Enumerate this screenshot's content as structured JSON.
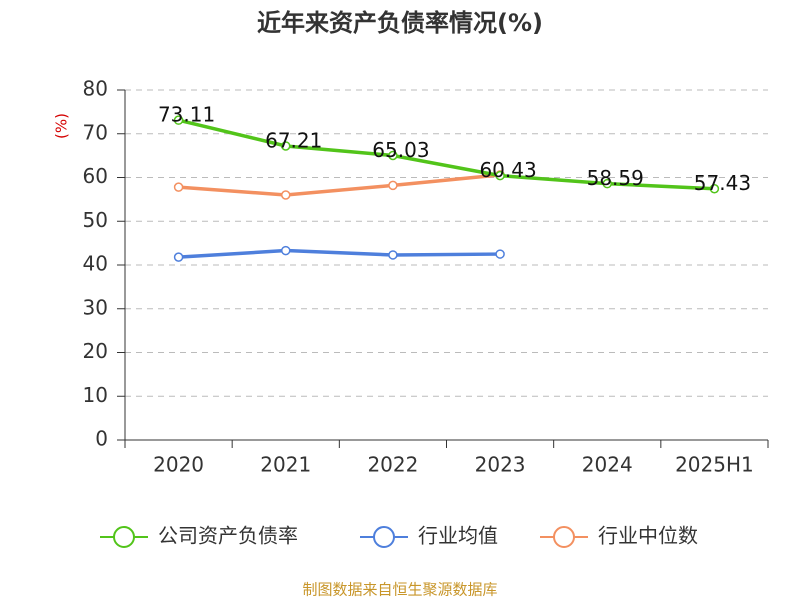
{
  "chart_data": {
    "type": "line",
    "title": "近年来资产负债率情况(%)",
    "y_label": "(%)",
    "categories": [
      "2020",
      "2021",
      "2022",
      "2023",
      "2024",
      "2025H1"
    ],
    "series": [
      {
        "name": "公司资产负债率",
        "color": "#52c41a",
        "values": [
          73.11,
          67.21,
          65.03,
          60.43,
          58.59,
          57.43
        ],
        "show_labels": true
      },
      {
        "name": "行业均值",
        "color": "#4e7fdc",
        "values": [
          41.8,
          43.3,
          42.3,
          42.5,
          null,
          null
        ]
      },
      {
        "name": "行业中位数",
        "color": "#f39060",
        "values": [
          57.8,
          56.0,
          58.2,
          60.6,
          null,
          null
        ]
      }
    ],
    "ylim": [
      0,
      80
    ],
    "yticks": [
      0,
      10,
      20,
      30,
      40,
      50,
      60,
      70,
      80
    ],
    "grid": true,
    "source": "制图数据来自恒生聚源数据库"
  }
}
